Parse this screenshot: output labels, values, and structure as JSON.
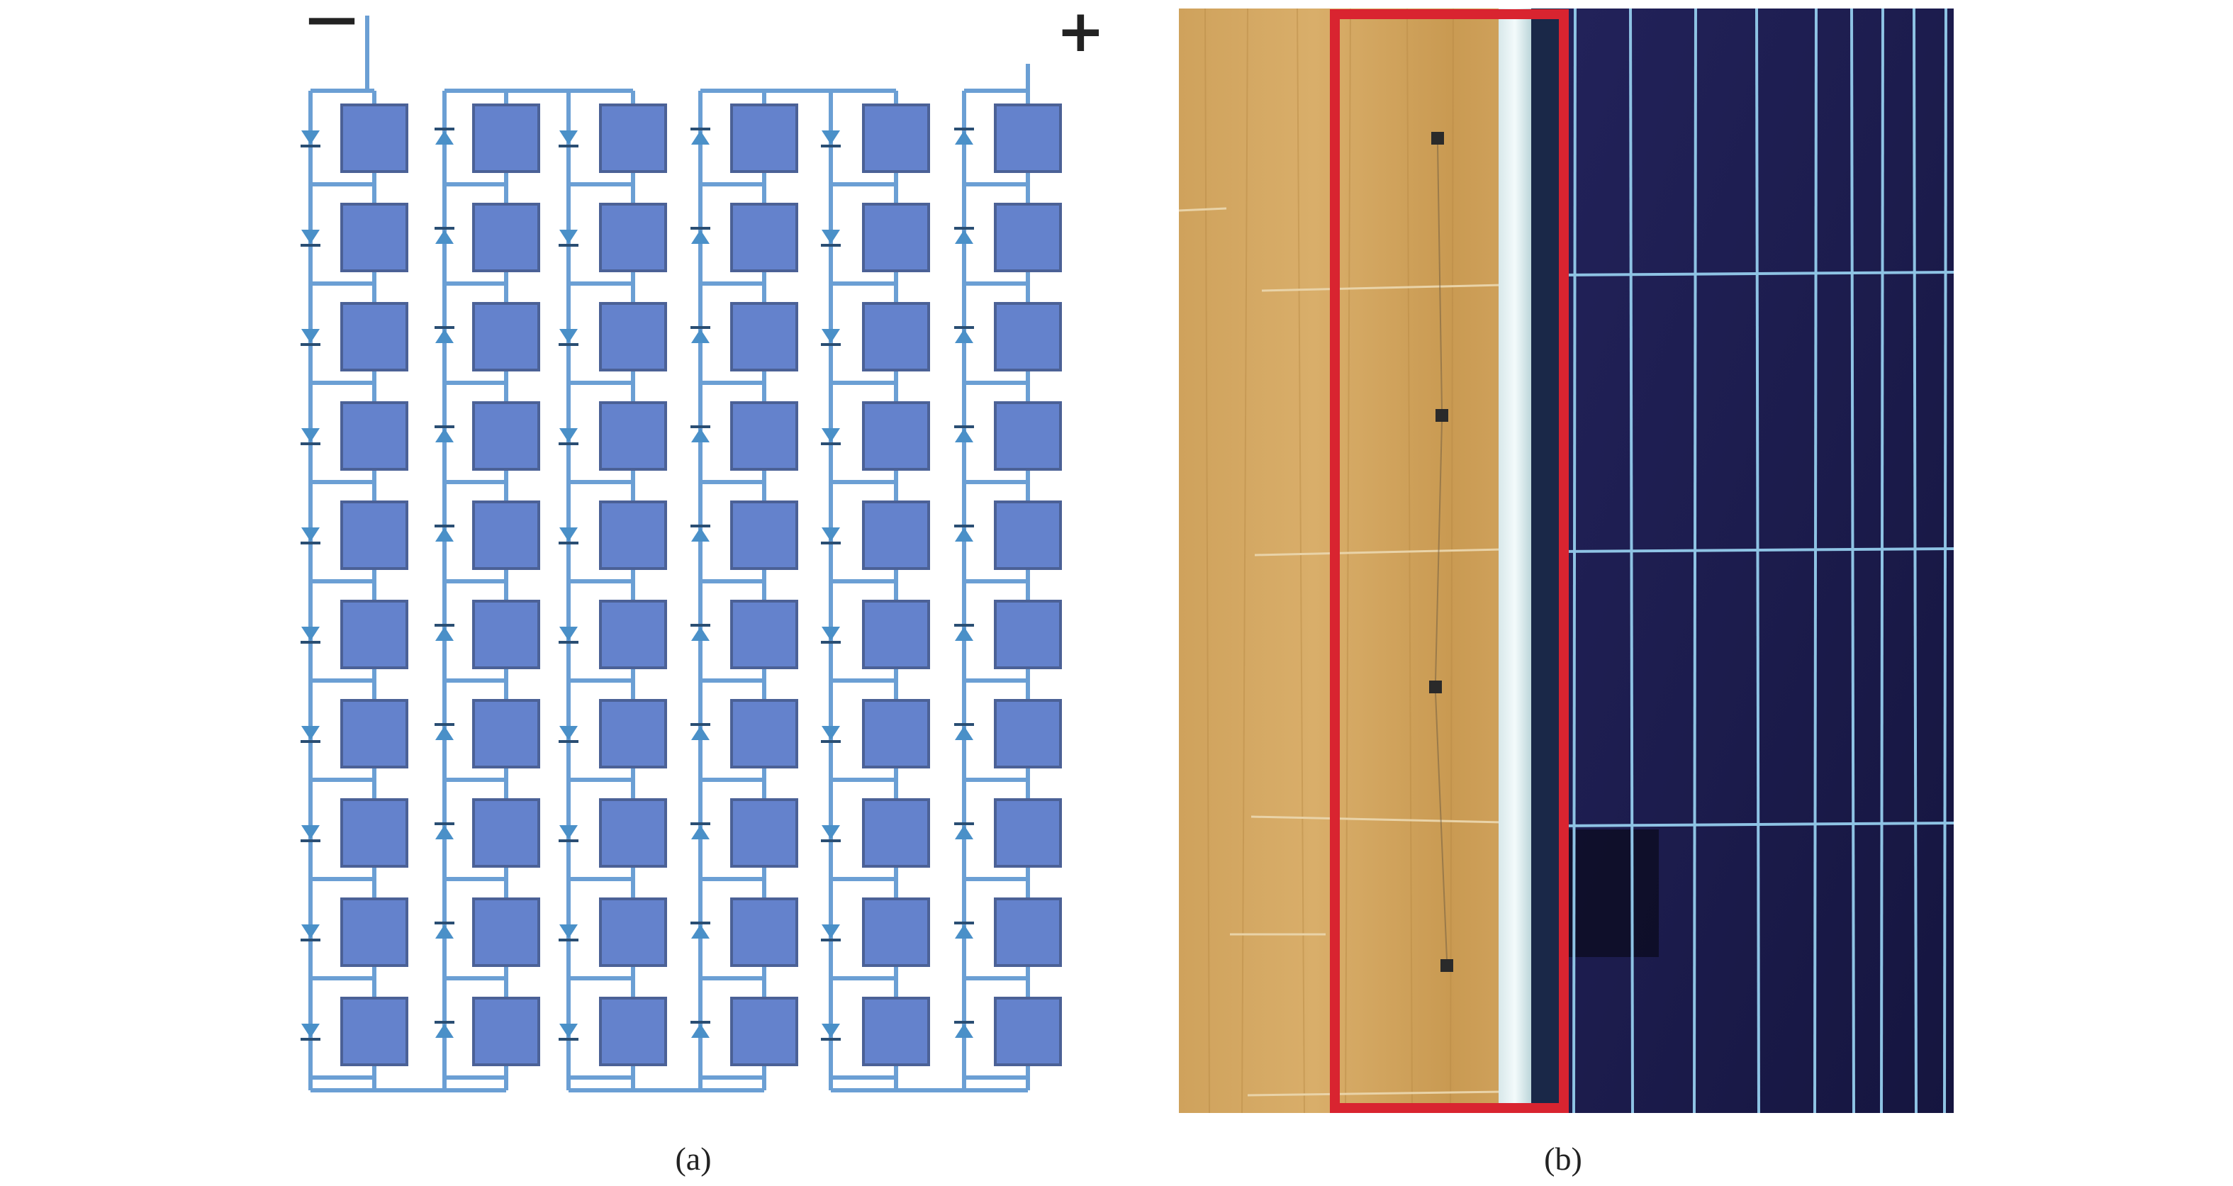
{
  "panel_a": {
    "caption": "(a)",
    "negative_terminal": "—",
    "positive_terminal": "+",
    "columns": 6,
    "cells_per_column": 10,
    "colors": {
      "cell_fill": "#6482cc",
      "cell_stroke": "#4b6196",
      "wire": "#6b9fd4",
      "diode": "#4a90c8",
      "diode_dark": "#2a4e73",
      "terminal_text": "#222222"
    }
  },
  "panel_b": {
    "caption": "(b)",
    "colors": {
      "wood": "#d2a55f",
      "wood_dark": "#c09048",
      "module_glass": "#1c1c4d",
      "module_grid": "#8ec3e4",
      "frame": "#e8f2f4",
      "highlight_box": "#d92430",
      "sensor": "#2a2a2a"
    }
  }
}
